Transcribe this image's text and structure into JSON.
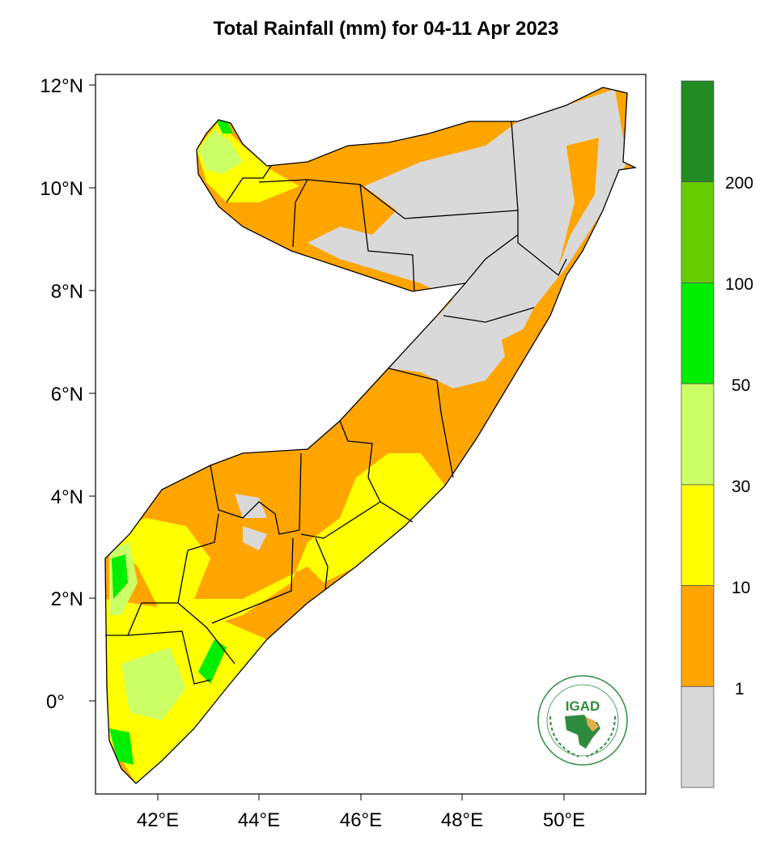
{
  "title": "Total Rainfall (mm) for 04-11 Apr 2023",
  "axes": {
    "lat_labels": [
      "12°N",
      "10°N",
      "8°N",
      "6°N",
      "4°N",
      "2°N",
      "0°"
    ],
    "lon_labels": [
      "42°E",
      "44°E",
      "46°E",
      "48°E",
      "50°E"
    ]
  },
  "colorbar": {
    "unit": "mm",
    "bins": [
      {
        "range": ">200",
        "color": "#228b22"
      },
      {
        "range": "100-200",
        "color": "#66cc00"
      },
      {
        "range": "50-100",
        "color": "#00ee00"
      },
      {
        "range": "30-50",
        "color": "#ccff66"
      },
      {
        "range": "10-30",
        "color": "#ffff00"
      },
      {
        "range": "1-10",
        "color": "#ffa500"
      },
      {
        "range": "<1",
        "color": "#d9d9d9"
      }
    ],
    "labels": [
      "200",
      "100",
      "50",
      "30",
      "10",
      "1"
    ]
  },
  "logo": {
    "name": "IGAD",
    "top_text": "INTERGOVERNMENTAL AUTHORITY ON DEVELOPMENT",
    "bottom_text": "AUTORITE INTERGOUVERNEMENTALE POUR LE DEVELOPPEMENT"
  }
}
